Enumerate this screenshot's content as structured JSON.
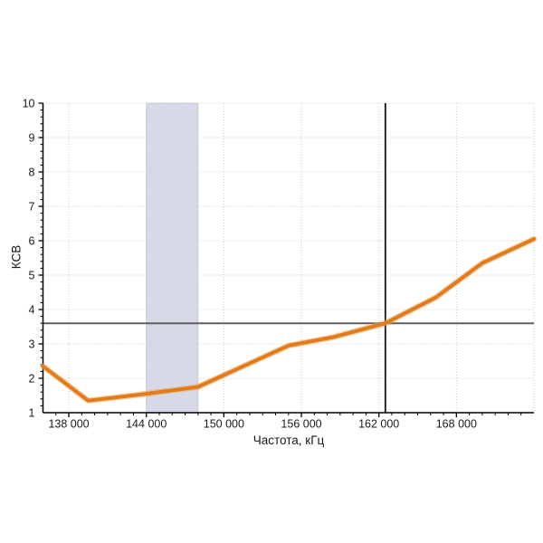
{
  "chart_data": {
    "type": "line",
    "title": "",
    "xlabel": "Частота, кГц",
    "ylabel": "КСВ",
    "xlim": [
      136000,
      174000
    ],
    "ylim": [
      1,
      10
    ],
    "x_ticks": [
      138000,
      144000,
      150000,
      156000,
      162000,
      168000
    ],
    "x_tick_labels": [
      "138 000",
      "144 000",
      "150 000",
      "156 000",
      "162 000",
      "168 000"
    ],
    "y_ticks": [
      1,
      2,
      3,
      4,
      5,
      6,
      7,
      8,
      9,
      10
    ],
    "y_tick_labels": [
      "1",
      "2",
      "3",
      "4",
      "5",
      "6",
      "7",
      "8",
      "9",
      "10"
    ],
    "x_minor_step": 1000,
    "y_minor_step": 0.2,
    "grid": true,
    "legend": "none",
    "highlight_band": {
      "x_from": 144000,
      "x_to": 148000,
      "color": "#d7d9e8",
      "edge_color": "#c2c5da"
    },
    "crosshair": {
      "x": 162500,
      "y": 3.6,
      "v_color": "#141414",
      "h_color": "#5f5f5f"
    },
    "series": [
      {
        "name": "КСВ",
        "color": "#e07c1e",
        "glow_color": "#f2a64f",
        "points": [
          [
            136000,
            2.35
          ],
          [
            139500,
            1.35
          ],
          [
            144000,
            1.55
          ],
          [
            148000,
            1.75
          ],
          [
            155000,
            2.95
          ],
          [
            158500,
            3.2
          ],
          [
            162500,
            3.6
          ],
          [
            166400,
            4.35
          ],
          [
            170000,
            5.35
          ],
          [
            174000,
            6.05
          ]
        ]
      }
    ],
    "colors": {
      "grid": "#c9c9c9",
      "axis": "#000000",
      "text": "#1a1a1a",
      "background": "#ffffff"
    }
  }
}
